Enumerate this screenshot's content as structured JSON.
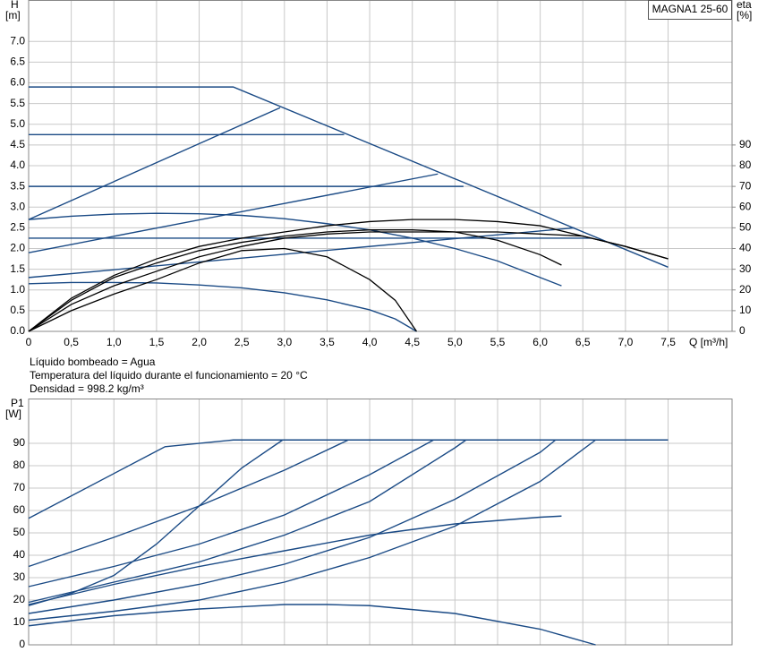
{
  "chart_data": [
    {
      "type": "line",
      "title": "MAGNA1 25-60",
      "y_label": "H",
      "y_unit": "[m]",
      "y2_label": "eta",
      "y2_unit": "[%]",
      "x_label": "Q [m³/h]",
      "xlim": [
        0,
        8.25
      ],
      "ylim": [
        0,
        8
      ],
      "y2lim": [
        0,
        160
      ],
      "grid": true,
      "xticks": [
        0,
        {
          "value": 0.5,
          "label": "0,5"
        },
        {
          "value": 1,
          "label": "1,0"
        },
        {
          "value": 1.5,
          "label": "1,5"
        },
        {
          "value": 2,
          "label": "2,0"
        },
        {
          "value": 2.5,
          "label": "2,5"
        },
        {
          "value": 3,
          "label": "3,0"
        },
        {
          "value": 3.5,
          "label": "3,5"
        },
        {
          "value": 4,
          "label": "4,0"
        },
        {
          "value": 4.5,
          "label": "4,5"
        },
        {
          "value": 5,
          "label": "5,0"
        },
        {
          "value": 5.5,
          "label": "5,5"
        },
        {
          "value": 6,
          "label": "6,0"
        },
        {
          "value": 6.5,
          "label": "6,5"
        },
        {
          "value": 7,
          "label": "7,0"
        },
        {
          "value": 7.5,
          "label": "7,5"
        }
      ],
      "yticks": [
        {
          "value": 0,
          "label": "0.0"
        },
        0.5,
        {
          "value": 1,
          "label": "1.0"
        },
        1.5,
        {
          "value": 2,
          "label": "2.0"
        },
        2.5,
        {
          "value": 3,
          "label": "3.0"
        },
        3.5,
        {
          "value": 4,
          "label": "4.0"
        },
        4.5,
        {
          "value": 5,
          "label": "5.0"
        },
        5.5,
        {
          "value": 6,
          "label": "6.0"
        },
        6.5,
        {
          "value": 7,
          "label": "7.0"
        }
      ],
      "y2ticks": [
        0,
        10,
        20,
        30,
        40,
        50,
        60,
        70,
        80,
        90
      ],
      "annotations": [
        "Líquido bombeado = Agua",
        "Temperatura del líquido durante el funcionamiento = 20 °C",
        "Densidad = 998.2 kg/m³"
      ],
      "series": [
        {
          "color": "#1a4a85",
          "x": [
            0,
            2.4,
            7.5
          ],
          "values": [
            5.9,
            5.9,
            1.55
          ]
        },
        {
          "color": "#1a4a85",
          "x": [
            0,
            3.7
          ],
          "values": [
            4.75,
            4.75
          ]
        },
        {
          "color": "#1a4a85",
          "x": [
            0,
            5.1
          ],
          "values": [
            3.5,
            3.5
          ]
        },
        {
          "color": "#1a4a85",
          "x": [
            0,
            6.6
          ],
          "values": [
            2.25,
            2.25
          ]
        },
        {
          "color": "#1a4a85",
          "x": [
            0,
            2.95
          ],
          "values": [
            2.7,
            5.4
          ]
        },
        {
          "color": "#1a4a85",
          "x": [
            0,
            4.8
          ],
          "values": [
            1.9,
            3.8
          ]
        },
        {
          "color": "#1a4a85",
          "x": [
            0,
            6.4
          ],
          "values": [
            1.3,
            2.5
          ]
        },
        {
          "color": "#1a4a85",
          "x": [
            0,
            0.5,
            1,
            1.5,
            2,
            2.5,
            3,
            3.5,
            4,
            4.5,
            5,
            5.5,
            6,
            6.25
          ],
          "values": [
            2.7,
            2.78,
            2.83,
            2.85,
            2.84,
            2.8,
            2.72,
            2.6,
            2.45,
            2.25,
            2.0,
            1.7,
            1.3,
            1.1
          ]
        },
        {
          "color": "#1a4a85",
          "x": [
            0,
            0.5,
            1,
            1.5,
            2,
            2.5,
            3,
            3.5,
            4,
            4.3,
            4.55
          ],
          "values": [
            1.15,
            1.18,
            1.18,
            1.17,
            1.12,
            1.05,
            0.93,
            0.76,
            0.52,
            0.3,
            0
          ]
        },
        {
          "color": "#000000",
          "axis": "y2",
          "x": [
            0,
            0.5,
            1,
            1.5,
            2,
            2.5,
            3,
            3.5,
            4,
            4.5,
            5,
            5.5,
            6,
            6.5,
            7,
            7.5
          ],
          "values": [
            0,
            16,
            27,
            35,
            41,
            45,
            48,
            51,
            53,
            54,
            54,
            53,
            51,
            46,
            41,
            35
          ]
        },
        {
          "color": "#000000",
          "axis": "y2",
          "x": [
            0,
            0.5,
            1,
            1.5,
            2,
            2.5,
            3,
            3.5,
            4,
            4.5,
            5,
            5.5,
            6,
            6.5,
            7,
            7.5
          ],
          "values": [
            0,
            13,
            22,
            29,
            36,
            41,
            45,
            47,
            48,
            48,
            48,
            48,
            47,
            46,
            41,
            35
          ]
        },
        {
          "color": "#000000",
          "axis": "y2",
          "x": [
            0,
            0.5,
            1,
            1.5,
            2,
            2.5,
            3,
            3.5,
            4,
            4.5,
            5,
            5.5,
            6,
            6.25
          ],
          "values": [
            0,
            15,
            26,
            33,
            39,
            43,
            46,
            48,
            49,
            49,
            48,
            44,
            37,
            32
          ]
        },
        {
          "color": "#000000",
          "axis": "y2",
          "x": [
            0,
            0.5,
            1,
            1.5,
            2,
            2.5,
            3,
            3.5,
            4,
            4.3,
            4.55
          ],
          "values": [
            0,
            10,
            18,
            25,
            33,
            39,
            40,
            36,
            25,
            15,
            0
          ]
        }
      ]
    },
    {
      "type": "line",
      "y_label": "P1",
      "y_unit": "[W]",
      "xlim": [
        0,
        8.25
      ],
      "ylim": [
        0,
        110
      ],
      "grid": true,
      "yticks": [
        0,
        10,
        20,
        30,
        40,
        50,
        60,
        70,
        80,
        90
      ],
      "series": [
        {
          "color": "#1a4a85",
          "x": [
            0,
            1.6,
            2.4,
            7.5
          ],
          "values": [
            56.5,
            88.5,
            91.5,
            91.5
          ]
        },
        {
          "color": "#1a4a85",
          "x": [
            0,
            0.5,
            1,
            1.5,
            2,
            2.5,
            2.98
          ],
          "values": [
            17.5,
            23,
            31,
            45,
            62,
            79,
            91.5
          ]
        },
        {
          "color": "#1a4a85",
          "x": [
            0,
            1,
            2,
            3,
            3.75
          ],
          "values": [
            35,
            48,
            62,
            78,
            91.5
          ]
        },
        {
          "color": "#1a4a85",
          "x": [
            0,
            1,
            2,
            3,
            4,
            4.75
          ],
          "values": [
            26,
            35,
            45,
            58,
            76,
            91.5
          ]
        },
        {
          "color": "#1a4a85",
          "x": [
            0,
            1,
            2,
            3,
            4,
            5,
            5.13
          ],
          "values": [
            19,
            28,
            37,
            49,
            64,
            88,
            91.5
          ]
        },
        {
          "color": "#1a4a85",
          "x": [
            0,
            1,
            2,
            3,
            4,
            5,
            6,
            6.18
          ],
          "values": [
            14,
            20,
            27,
            36,
            48,
            65,
            86,
            91.5
          ]
        },
        {
          "color": "#1a4a85",
          "x": [
            0,
            1,
            2,
            3,
            4,
            5,
            6,
            6.65
          ],
          "values": [
            11,
            15,
            20,
            28,
            39,
            53,
            73,
            91.5
          ]
        },
        {
          "color": "#1a4a85",
          "x": [
            0,
            1,
            2,
            3,
            4,
            5,
            6,
            6.25
          ],
          "values": [
            18,
            27,
            35,
            42,
            49,
            54,
            57,
            57.5
          ]
        },
        {
          "color": "#1a4a85",
          "x": [
            0,
            1,
            2,
            3,
            3.5,
            4,
            5,
            6,
            6.65
          ],
          "values": [
            8.5,
            13,
            16,
            18,
            18,
            17.5,
            14,
            7,
            0
          ]
        }
      ]
    }
  ]
}
